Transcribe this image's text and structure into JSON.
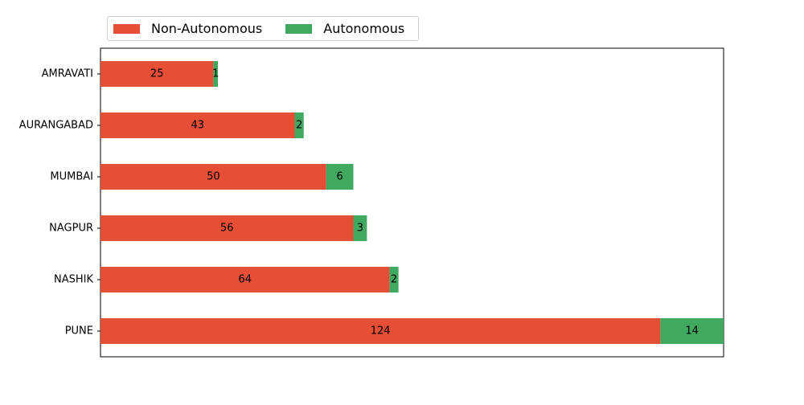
{
  "chart_data": {
    "type": "bar",
    "orientation": "horizontal",
    "stacked": true,
    "title": "",
    "xlabel": "",
    "ylabel": "",
    "categories": [
      "AMRAVATI",
      "AURANGABAD",
      "MUMBAI",
      "NAGPUR",
      "NASHIK",
      "PUNE"
    ],
    "series": [
      {
        "name": "Non-Autonomous",
        "color": "#e64f35",
        "values": [
          25,
          43,
          50,
          56,
          64,
          124
        ]
      },
      {
        "name": "Autonomous",
        "color": "#41a85f",
        "values": [
          1,
          2,
          6,
          3,
          2,
          14
        ]
      }
    ],
    "xlim": [
      0,
      138
    ],
    "x_axis_visible": false,
    "grid": false,
    "legend_position": "top-left, outside above plot, 2 columns"
  }
}
